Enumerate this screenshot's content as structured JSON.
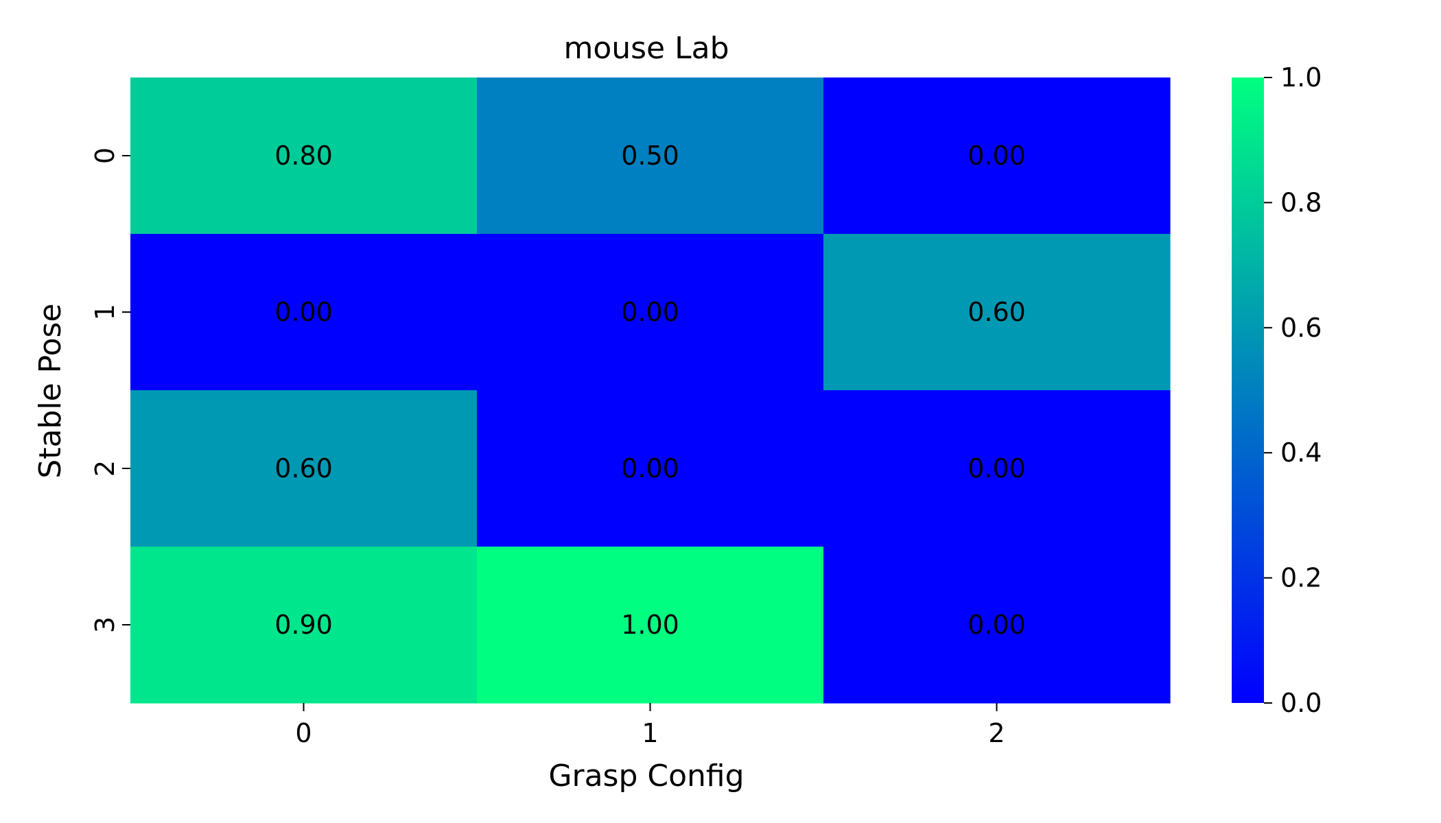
{
  "chart_data": {
    "type": "heatmap",
    "title": "mouse Lab",
    "xlabel": "Grasp Config",
    "ylabel": "Stable Pose",
    "x_categories": [
      "0",
      "1",
      "2"
    ],
    "y_categories": [
      "0",
      "1",
      "2",
      "3"
    ],
    "values": [
      [
        0.8,
        0.5,
        0.0
      ],
      [
        0.0,
        0.0,
        0.6
      ],
      [
        0.6,
        0.0,
        0.0
      ],
      [
        0.9,
        1.0,
        0.0
      ]
    ],
    "value_format": "0.00",
    "colormap": "winter",
    "colormap_low": "#0000ff",
    "colormap_high": "#00ff80",
    "vmin": 0.0,
    "vmax": 1.0,
    "colorbar_ticks": [
      "0.0",
      "0.2",
      "0.4",
      "0.6",
      "0.8",
      "1.0"
    ],
    "colorbar_placement": "right",
    "grid": false
  }
}
